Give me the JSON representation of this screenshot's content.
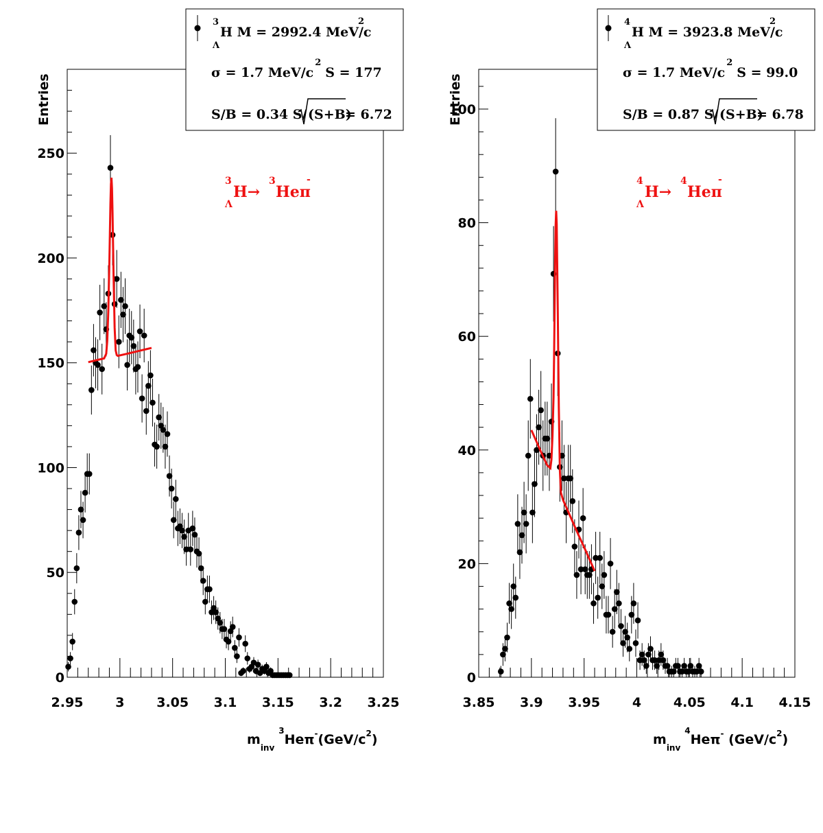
{
  "chart_data": [
    {
      "type": "scatter",
      "xlim": [
        2.95,
        3.25
      ],
      "ylim": [
        0,
        290
      ],
      "x_ticks": [
        "2.95",
        "3",
        "3.05",
        "3.1",
        "3.15",
        "3.2",
        "3.25"
      ],
      "x_tick_values": [
        2.95,
        3.0,
        3.05,
        3.1,
        3.15,
        3.2,
        3.25
      ],
      "y_ticks": [
        "0",
        "50",
        "100",
        "150",
        "200",
        "250"
      ],
      "y_tick_values": [
        0,
        50,
        100,
        150,
        200,
        250
      ],
      "ylabel": "Entries",
      "xlabel": {
        "m": "m",
        "sub": "inv",
        "sup": "3",
        "body": "Heπ",
        "minus": "-",
        "unit_open": "(GeV/c",
        "unit_sup": "2",
        "unit_close": ")"
      },
      "legend": {
        "line1": {
          "sup": "3",
          "sub": "Λ",
          "text": "H M = 2992.4 MeV/c",
          "text_sup": "2"
        },
        "line2": {
          "text": "σ = 1.7 MeV/c",
          "sup": "2",
          "tail": "S =  177"
        },
        "line3": {
          "head": "S/B = 0.34  S/",
          "radicand": "(S+B)",
          "tail": " = 6.72"
        }
      },
      "annotation": {
        "sup1": "3",
        "sub1": "Λ",
        "a": "H",
        "arrow": "→",
        "sup2": "3",
        "b": "Heπ",
        "minus": "-"
      },
      "colors": {
        "fit": "#ee1111",
        "points": "#000000"
      },
      "series": [
        {
          "type": "points",
          "x": [
            2.951,
            2.953,
            2.955,
            2.957,
            2.959,
            2.961,
            2.963,
            2.965,
            2.967,
            2.969,
            2.971,
            2.973,
            2.975,
            2.977,
            2.979,
            2.981,
            2.983,
            2.985,
            2.987,
            2.989,
            2.991,
            2.993,
            2.995,
            2.997,
            2.999,
            3.001,
            3.003,
            3.005,
            3.007,
            3.009,
            3.011,
            3.013,
            3.015,
            3.017,
            3.019,
            3.021,
            3.023,
            3.025,
            3.027,
            3.029,
            3.031,
            3.033,
            3.035,
            3.037,
            3.039,
            3.041,
            3.043,
            3.045,
            3.047,
            3.049,
            3.051,
            3.053,
            3.055,
            3.057,
            3.059,
            3.061,
            3.063,
            3.065,
            3.067,
            3.069,
            3.071,
            3.073,
            3.075,
            3.077,
            3.079,
            3.081,
            3.083,
            3.085,
            3.087,
            3.089,
            3.091,
            3.093,
            3.095,
            3.097,
            3.099,
            3.101,
            3.103,
            3.105,
            3.107,
            3.109,
            3.111,
            3.113,
            3.115,
            3.117,
            3.119,
            3.121,
            3.123,
            3.125,
            3.127,
            3.129,
            3.131,
            3.133,
            3.135,
            3.137,
            3.139,
            3.141,
            3.143,
            3.145,
            3.147,
            3.149,
            3.151,
            3.153,
            3.155,
            3.157,
            3.159,
            3.161
          ],
          "y": [
            5,
            9,
            17,
            36,
            52,
            69,
            80,
            75,
            88,
            97,
            97,
            137,
            156,
            150,
            149,
            174,
            147,
            177,
            166,
            183,
            243,
            211,
            178,
            190,
            160,
            180,
            173,
            177,
            149,
            163,
            162,
            158,
            147,
            148,
            165,
            133,
            163,
            127,
            139,
            144,
            131,
            111,
            110,
            124,
            120,
            118,
            110,
            116,
            96,
            90,
            75,
            85,
            71,
            72,
            70,
            67,
            61,
            70,
            61,
            71,
            68,
            60,
            59,
            52,
            46,
            36,
            42,
            42,
            31,
            33,
            31,
            28,
            26,
            23,
            23,
            18,
            17,
            22,
            24,
            14,
            10,
            19,
            2,
            3,
            16,
            9,
            4,
            5,
            7,
            3,
            6,
            2,
            4,
            3,
            5,
            2,
            3,
            1,
            1,
            1,
            1,
            1,
            1,
            1,
            1,
            1
          ],
          "err": [
            2.2,
            3,
            4.1,
            6,
            7.2,
            8.3,
            8.9,
            8.7,
            9.4,
            9.8,
            9.8,
            11.7,
            12.5,
            12.2,
            12.2,
            13.2,
            12.1,
            13.3,
            12.9,
            13.5,
            15.6,
            14.5,
            13.3,
            13.8,
            12.6,
            13.4,
            13.2,
            13.3,
            12.2,
            12.8,
            12.7,
            12.6,
            12.1,
            12.2,
            12.8,
            11.5,
            12.8,
            11.3,
            11.8,
            12,
            11.4,
            10.5,
            10.5,
            11.1,
            11,
            10.9,
            10.5,
            10.8,
            9.8,
            9.5,
            8.7,
            9.2,
            8.4,
            8.5,
            8.4,
            8.2,
            7.8,
            8.4,
            7.8,
            8.4,
            8.2,
            7.7,
            7.7,
            7.2,
            6.8,
            6,
            6.5,
            6.5,
            5.6,
            5.7,
            5.6,
            5.3,
            5.1,
            4.8,
            4.8,
            4.2,
            4.1,
            4.7,
            4.9,
            3.7,
            3.2,
            4.4,
            1.4,
            1.7,
            4,
            3,
            2,
            2.2,
            2.6,
            1.7,
            2.4,
            1.4,
            2,
            1.7,
            2.2,
            1.4,
            1.7,
            1,
            1,
            1,
            1,
            1,
            1,
            1,
            1,
            1
          ]
        },
        {
          "type": "fit",
          "name": "",
          "x": [
            2.97,
            2.975,
            2.98,
            2.985,
            2.987,
            2.988,
            2.989,
            2.99,
            2.9905,
            2.991,
            2.9915,
            2.992,
            2.9925,
            2.993,
            2.994,
            2.995,
            2.996,
            2.997,
            2.998,
            3.005,
            3.01,
            3.015,
            3.02,
            3.025,
            3.03
          ],
          "y": [
            150.3,
            150.9,
            151.5,
            152.1,
            154.3,
            160.5,
            174.9,
            197.7,
            211.7,
            225.6,
            235.3,
            238.3,
            233.2,
            221.6,
            191.2,
            166.7,
            155.9,
            153.7,
            153.3,
            154.1,
            154.7,
            155.3,
            155.9,
            156.5,
            157.1
          ]
        }
      ]
    },
    {
      "type": "scatter",
      "xlim": [
        3.85,
        4.15
      ],
      "ylim": [
        0,
        107
      ],
      "x_ticks": [
        "3.85",
        "3.9",
        "3.95",
        "4",
        "4.05",
        "4.1",
        "4.15"
      ],
      "x_tick_values": [
        3.85,
        3.9,
        3.95,
        4.0,
        4.05,
        4.1,
        4.15
      ],
      "y_ticks": [
        "0",
        "20",
        "40",
        "60",
        "80",
        "100"
      ],
      "y_tick_values": [
        0,
        20,
        40,
        60,
        80,
        100
      ],
      "ylabel": "Entries",
      "xlabel": {
        "m": "m",
        "sub": "inv",
        "sup": "4",
        "body": "Heπ",
        "minus": "-",
        "unit_open": " (GeV/c",
        "unit_sup": "2",
        "unit_close": ")"
      },
      "legend": {
        "line1": {
          "sup": "4",
          "sub": "Λ",
          "text": "H M = 3923.8 MeV/c",
          "text_sup": "2"
        },
        "line2": {
          "text": "σ = 1.7 MeV/c",
          "sup": "2",
          "tail": "S = 99.0"
        },
        "line3": {
          "head": "S/B = 0.87  S/",
          "radicand": "(S+B)",
          "tail": " = 6.78"
        }
      },
      "annotation": {
        "sup1": "4",
        "sub1": "Λ",
        "a": "H",
        "arrow": "→",
        "sup2": "4",
        "b": "Heπ",
        "minus": "-"
      },
      "colors": {
        "fit": "#ee1111",
        "points": "#000000"
      },
      "series": [
        {
          "type": "points",
          "x": [
            3.871,
            3.873,
            3.875,
            3.877,
            3.879,
            3.881,
            3.883,
            3.885,
            3.887,
            3.889,
            3.891,
            3.893,
            3.895,
            3.897,
            3.899,
            3.901,
            3.903,
            3.905,
            3.907,
            3.909,
            3.911,
            3.913,
            3.915,
            3.917,
            3.919,
            3.921,
            3.923,
            3.925,
            3.927,
            3.929,
            3.931,
            3.933,
            3.935,
            3.937,
            3.939,
            3.941,
            3.943,
            3.945,
            3.947,
            3.949,
            3.951,
            3.953,
            3.955,
            3.957,
            3.959,
            3.961,
            3.963,
            3.965,
            3.967,
            3.969,
            3.971,
            3.973,
            3.975,
            3.977,
            3.979,
            3.981,
            3.983,
            3.985,
            3.987,
            3.989,
            3.991,
            3.993,
            3.995,
            3.997,
            3.999,
            4.001,
            4.003,
            4.005,
            4.007,
            4.009,
            4.011,
            4.013,
            4.015,
            4.017,
            4.019,
            4.021,
            4.023,
            4.025,
            4.027,
            4.029,
            4.031,
            4.033,
            4.035,
            4.037,
            4.039,
            4.041,
            4.043,
            4.045,
            4.047,
            4.049,
            4.051,
            4.053,
            4.055,
            4.057,
            4.059,
            4.061
          ],
          "y": [
            1,
            4,
            5,
            7,
            13,
            12,
            16,
            14,
            27,
            22,
            25,
            29,
            27,
            39,
            49,
            29,
            34,
            40,
            44,
            47,
            39,
            42,
            42,
            39,
            45,
            71,
            89,
            57,
            37,
            39,
            35,
            29,
            35,
            35,
            31,
            23,
            18,
            26,
            19,
            28,
            19,
            18,
            18,
            19,
            13,
            21,
            14,
            21,
            16,
            18,
            11,
            11,
            20,
            8,
            12,
            15,
            13,
            9,
            6,
            8,
            7,
            5,
            11,
            13,
            6,
            10,
            3,
            4,
            3,
            2,
            4,
            5,
            3,
            3,
            2,
            3,
            4,
            3,
            2,
            2,
            1,
            1,
            1,
            2,
            2,
            1,
            1,
            2,
            1,
            1,
            2,
            1,
            1,
            1,
            2,
            1
          ],
          "err": [
            1,
            2,
            2.2,
            2.6,
            3.6,
            3.5,
            4,
            3.7,
            5.2,
            4.7,
            5,
            5.4,
            5.2,
            6.2,
            7,
            5.4,
            5.8,
            6.3,
            6.6,
            6.9,
            6.2,
            6.5,
            6.5,
            6.2,
            6.7,
            8.4,
            9.4,
            7.5,
            6.1,
            6.2,
            5.9,
            5.4,
            5.9,
            5.9,
            5.6,
            4.8,
            4.2,
            5.1,
            4.4,
            5.3,
            4.4,
            4.2,
            4.2,
            4.4,
            3.6,
            4.6,
            3.7,
            4.6,
            4,
            4.2,
            3.3,
            3.3,
            4.5,
            2.8,
            3.5,
            3.9,
            3.6,
            3,
            2.4,
            2.8,
            2.6,
            2.2,
            3.3,
            3.6,
            2.4,
            3.2,
            1.7,
            2,
            1.7,
            1.4,
            2,
            2.2,
            1.7,
            1.7,
            1.4,
            1.7,
            2,
            1.7,
            1.4,
            1.4,
            1,
            1,
            1,
            1.4,
            1.4,
            1,
            1,
            1.4,
            1,
            1,
            1.4,
            1,
            1,
            1,
            1.4,
            1
          ]
        },
        {
          "type": "fit",
          "name": "",
          "x": [
            3.9,
            3.905,
            3.91,
            3.915,
            3.918,
            3.919,
            3.92,
            3.921,
            3.9215,
            3.922,
            3.9225,
            3.923,
            3.9235,
            3.924,
            3.925,
            3.926,
            3.927,
            3.928,
            3.93,
            3.935,
            3.94,
            3.945,
            3.95,
            3.955,
            3.96
          ],
          "y": [
            43.5,
            41.4,
            39.3,
            37.3,
            36.8,
            38.3,
            42.4,
            49.3,
            56.1,
            64.8,
            73.2,
            79.6,
            82.1,
            79.8,
            64.9,
            47.6,
            36.5,
            32.5,
            31.2,
            29.1,
            27,
            24.9,
            22.9,
            20.8,
            18.7
          ]
        }
      ]
    }
  ]
}
